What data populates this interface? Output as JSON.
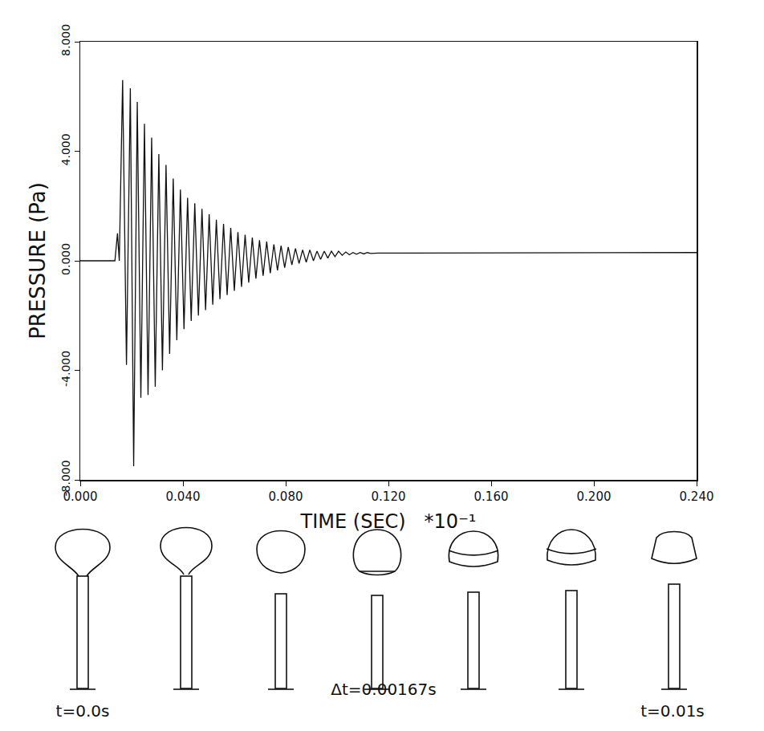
{
  "chart_data": {
    "type": "line",
    "x_label": "TIME (SEC)   *10⁻¹",
    "y_label": "PRESSURE (Pa)",
    "color": "#111111",
    "grid": false,
    "x": [
      0,
      0.0135,
      0.0145,
      0.0152,
      0.0165,
      0.018,
      0.0195,
      0.0208,
      0.0222,
      0.0236,
      0.025,
      0.0264,
      0.0278,
      0.0292,
      0.0306,
      0.032,
      0.0334,
      0.0348,
      0.0362,
      0.0376,
      0.039,
      0.0404,
      0.0418,
      0.0432,
      0.0446,
      0.046,
      0.0474,
      0.0488,
      0.0502,
      0.0516,
      0.053,
      0.0544,
      0.0558,
      0.0572,
      0.0586,
      0.06,
      0.0614,
      0.0628,
      0.0642,
      0.0656,
      0.067,
      0.0684,
      0.0698,
      0.0712,
      0.0726,
      0.074,
      0.0754,
      0.0768,
      0.0782,
      0.0796,
      0.081,
      0.0824,
      0.0838,
      0.0852,
      0.0866,
      0.088,
      0.0894,
      0.0908,
      0.0922,
      0.0936,
      0.095,
      0.0964,
      0.0978,
      0.0992,
      0.1006,
      0.102,
      0.1034,
      0.1048,
      0.1062,
      0.1076,
      0.109,
      0.1104,
      0.1118,
      0.1132,
      0.116,
      0.24
    ],
    "values": [
      0,
      0,
      1.0,
      0,
      6.6,
      -3.8,
      6.3,
      -7.5,
      5.8,
      -5.0,
      5.0,
      -4.9,
      4.5,
      -4.6,
      3.9,
      -4.0,
      3.5,
      -3.4,
      3.0,
      -2.9,
      2.6,
      -2.5,
      2.3,
      -2.2,
      2.1,
      -2.0,
      1.9,
      -1.8,
      1.7,
      -1.6,
      1.5,
      -1.4,
      1.35,
      -1.25,
      1.2,
      -1.1,
      1.05,
      -0.95,
      0.95,
      -0.8,
      0.85,
      -0.65,
      0.75,
      -0.55,
      0.7,
      -0.45,
      0.6,
      -0.35,
      0.55,
      -0.25,
      0.5,
      -0.15,
      0.45,
      -0.1,
      0.4,
      -0.05,
      0.4,
      0.0,
      0.35,
      0.05,
      0.35,
      0.1,
      0.35,
      0.15,
      0.35,
      0.2,
      0.32,
      0.22,
      0.3,
      0.24,
      0.3,
      0.25,
      0.3,
      0.27,
      0.28,
      0.3
    ],
    "xlim": [
      0,
      0.24
    ],
    "ylim": [
      -8,
      8
    ],
    "xticks": [
      {
        "value": 0,
        "label": "0.000"
      },
      {
        "value": 0.04,
        "label": "0.040"
      },
      {
        "value": 0.08,
        "label": "0.080"
      },
      {
        "value": 0.12,
        "label": "0.120"
      },
      {
        "value": 0.16,
        "label": "0.160"
      },
      {
        "value": 0.2,
        "label": "0.200"
      },
      {
        "value": 0.24,
        "label": "0.240"
      }
    ],
    "yticks": [
      {
        "value": -8,
        "label": "-8.000"
      },
      {
        "value": -4,
        "label": "-4.000"
      },
      {
        "value": 0,
        "label": "0.000"
      },
      {
        "value": 4,
        "label": "4.000"
      },
      {
        "value": 8,
        "label": "8.000"
      }
    ],
    "annotations": [
      "t=0.0s",
      "Δt=0.00167s",
      "t=0.01s"
    ]
  }
}
